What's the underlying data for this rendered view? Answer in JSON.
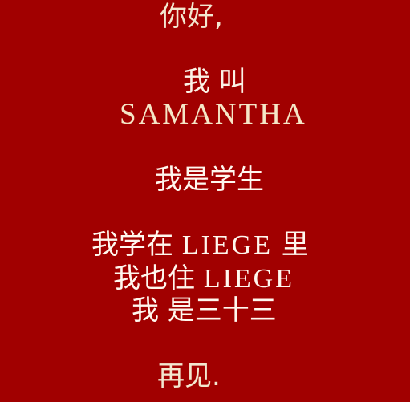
{
  "colors": {
    "background": "#a10000",
    "text": "#fff7ee",
    "accent_text": "#f5e6c7"
  },
  "lines": {
    "greeting": "你好,",
    "name_prefix": "我 叫",
    "name": "SAMANTHA",
    "student": "我是学生",
    "study_prefix": "我学在 ",
    "study_place": "LIEGE",
    "study_suffix": " 里",
    "live_prefix": "我也住 ",
    "live_place": "LIEGE",
    "age": "我 是三十三",
    "goodbye": "再见."
  }
}
